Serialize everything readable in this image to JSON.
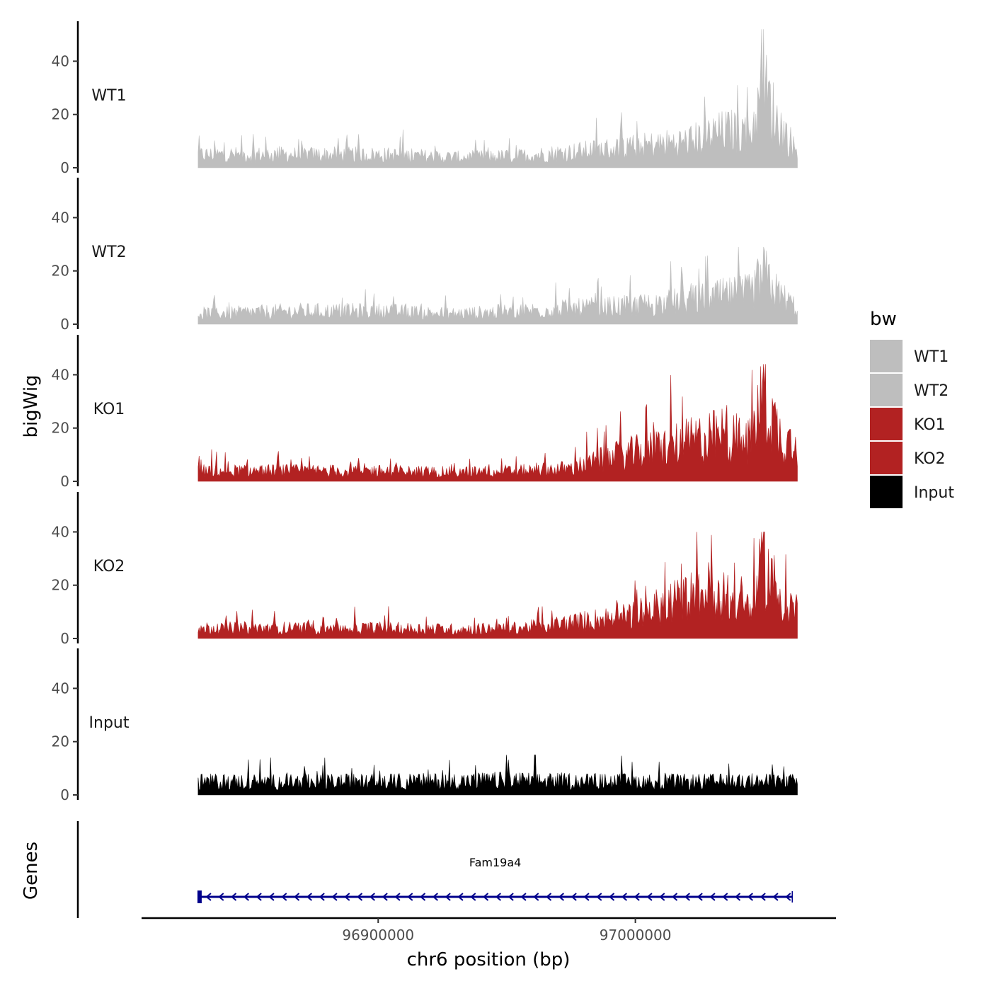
{
  "chart_data": {
    "type": "area",
    "chromosome": "chr6",
    "x_range": [
      96830000,
      97063000
    ],
    "xlim": [
      96808000,
      97078000
    ],
    "ylim": [
      0,
      55
    ],
    "yticks": [
      0,
      20,
      40
    ],
    "xticks": [
      96900000,
      97000000
    ],
    "xtick_labels": [
      "96900000",
      "97000000"
    ],
    "xlabel": "chr6 position (bp)",
    "ylabel": "bigWig",
    "gene_panel_label": "Genes",
    "colors": {
      "WT": "#bebebe",
      "KO": "#b22222",
      "Input": "#000000",
      "gene": "#00008b"
    },
    "series": [
      {
        "name": "WT1",
        "color": "#bebebe",
        "baseline": 5.5,
        "max": 52,
        "profile": [
          [
            96830000,
            5
          ],
          [
            96845000,
            5
          ],
          [
            96870000,
            5
          ],
          [
            96900000,
            5
          ],
          [
            96930000,
            4
          ],
          [
            96955000,
            4.5
          ],
          [
            96975000,
            6
          ],
          [
            97000000,
            8
          ],
          [
            97020000,
            10
          ],
          [
            97035000,
            14
          ],
          [
            97045000,
            14
          ],
          [
            97050000,
            30
          ],
          [
            97055000,
            18
          ],
          [
            97063000,
            6
          ]
        ]
      },
      {
        "name": "WT2",
        "color": "#bebebe",
        "baseline": 4.5,
        "max": 29,
        "profile": [
          [
            96830000,
            4
          ],
          [
            96870000,
            5
          ],
          [
            96900000,
            5
          ],
          [
            96930000,
            4
          ],
          [
            96955000,
            5
          ],
          [
            96975000,
            6
          ],
          [
            97000000,
            7
          ],
          [
            97020000,
            9
          ],
          [
            97035000,
            11
          ],
          [
            97045000,
            12
          ],
          [
            97050000,
            19
          ],
          [
            97055000,
            12
          ],
          [
            97063000,
            6
          ]
        ]
      },
      {
        "name": "KO1",
        "color": "#b22222",
        "baseline": 5,
        "max": 44,
        "profile": [
          [
            96830000,
            4
          ],
          [
            96870000,
            4
          ],
          [
            96900000,
            4
          ],
          [
            96930000,
            3.5
          ],
          [
            96955000,
            4
          ],
          [
            96975000,
            5
          ],
          [
            96990000,
            9
          ],
          [
            97010000,
            13
          ],
          [
            97025000,
            16
          ],
          [
            97035000,
            18
          ],
          [
            97043000,
            14
          ],
          [
            97050000,
            32
          ],
          [
            97056000,
            18
          ],
          [
            97063000,
            12
          ]
        ]
      },
      {
        "name": "KO2",
        "color": "#b22222",
        "baseline": 5,
        "max": 40,
        "profile": [
          [
            96830000,
            4
          ],
          [
            96870000,
            4
          ],
          [
            96900000,
            4
          ],
          [
            96930000,
            3.5
          ],
          [
            96955000,
            4
          ],
          [
            96975000,
            6
          ],
          [
            97000000,
            9
          ],
          [
            97015000,
            14
          ],
          [
            97030000,
            19
          ],
          [
            97038000,
            14
          ],
          [
            97045000,
            11
          ],
          [
            97050000,
            30
          ],
          [
            97056000,
            16
          ],
          [
            97063000,
            11
          ]
        ]
      },
      {
        "name": "Input",
        "color": "#000000",
        "baseline": 4.5,
        "max": 15,
        "profile": [
          [
            96830000,
            5
          ],
          [
            96900000,
            5
          ],
          [
            96950000,
            5.5
          ],
          [
            97000000,
            5
          ],
          [
            97063000,
            5
          ]
        ]
      }
    ],
    "legend": {
      "title": "bw",
      "position": "right",
      "entries": [
        "WT1",
        "WT2",
        "KO1",
        "KO2",
        "Input"
      ]
    },
    "genes": [
      {
        "name": "Fam19a4",
        "start": 96830000,
        "end": 97061000,
        "strand": "-"
      }
    ]
  }
}
